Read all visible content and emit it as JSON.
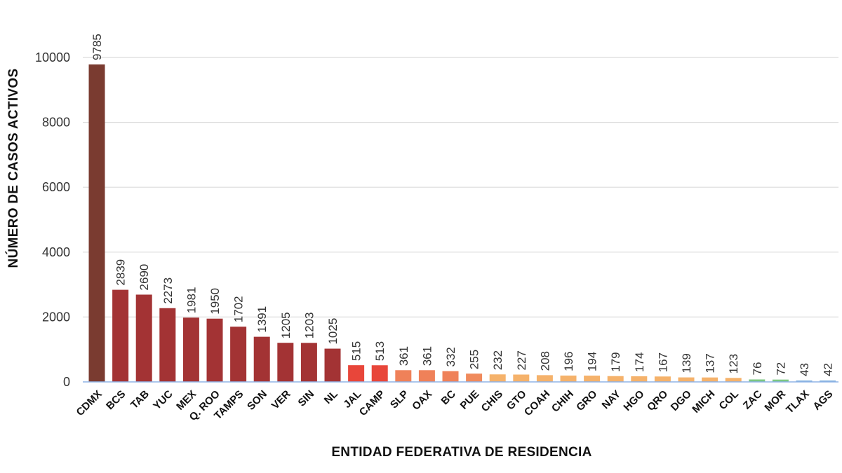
{
  "chart_data": {
    "type": "bar",
    "title": "",
    "xlabel": "ENTIDAD FEDERATIVA DE RESIDENCIA",
    "ylabel": "NÚMERO DE CASOS ACTIVOS",
    "ylim": [
      0,
      10000
    ],
    "yticks": [
      0,
      2000,
      4000,
      6000,
      8000,
      10000
    ],
    "grid": true,
    "legend": "none",
    "categories": [
      "CDMX",
      "BCS",
      "TAB",
      "YUC",
      "MEX",
      "Q. ROO",
      "TAMPS",
      "SON",
      "VER",
      "SIN",
      "NL",
      "JAL",
      "CAMP",
      "SLP",
      "OAX",
      "BC",
      "PUE",
      "CHIS",
      "GTO",
      "COAH",
      "CHIH",
      "GRO",
      "NAY",
      "HGO",
      "QRO",
      "DGO",
      "MICH",
      "COL",
      "ZAC",
      "MOR",
      "TLAX",
      "AGS"
    ],
    "values": [
      9785,
      2839,
      2690,
      2273,
      1981,
      1950,
      1702,
      1391,
      1205,
      1203,
      1025,
      515,
      513,
      361,
      361,
      332,
      255,
      232,
      227,
      208,
      196,
      194,
      179,
      174,
      167,
      139,
      137,
      123,
      76,
      72,
      43,
      42
    ],
    "bar_colors": [
      "#7a3b30",
      "#a33334",
      "#a33334",
      "#a33334",
      "#a33334",
      "#a33334",
      "#a33334",
      "#a33334",
      "#a33334",
      "#a33334",
      "#a33334",
      "#e8463a",
      "#e8463a",
      "#ef8159",
      "#ef8159",
      "#ef8159",
      "#f08a5c",
      "#f5b26b",
      "#f5b26b",
      "#f5b26b",
      "#f5b26b",
      "#f5b26b",
      "#f5b26b",
      "#f5b26b",
      "#f5b26b",
      "#f5b26b",
      "#f5b26b",
      "#f5b26b",
      "#7cc783",
      "#7cc783",
      "#7fb0e0",
      "#7fb0e0"
    ]
  }
}
